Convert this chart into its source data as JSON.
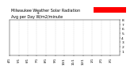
{
  "title": "Milwaukee Weather Solar Radiation",
  "subtitle": "Avg per Day W/m2/minute",
  "title_fontsize": 3.5,
  "bg_color": "#ffffff",
  "plot_bg_color": "#ffffff",
  "dot_color_current": "#ff0000",
  "dot_color_prev": "#000000",
  "ylim": [
    0,
    8
  ],
  "yticks": [
    1,
    2,
    3,
    4,
    5,
    6,
    7,
    8
  ],
  "ytick_fontsize": 3.2,
  "xtick_fontsize": 2.8,
  "grid_color": "#bbbbbb",
  "highlight_color": "#ff0000",
  "num_days": 365,
  "seed": 42
}
